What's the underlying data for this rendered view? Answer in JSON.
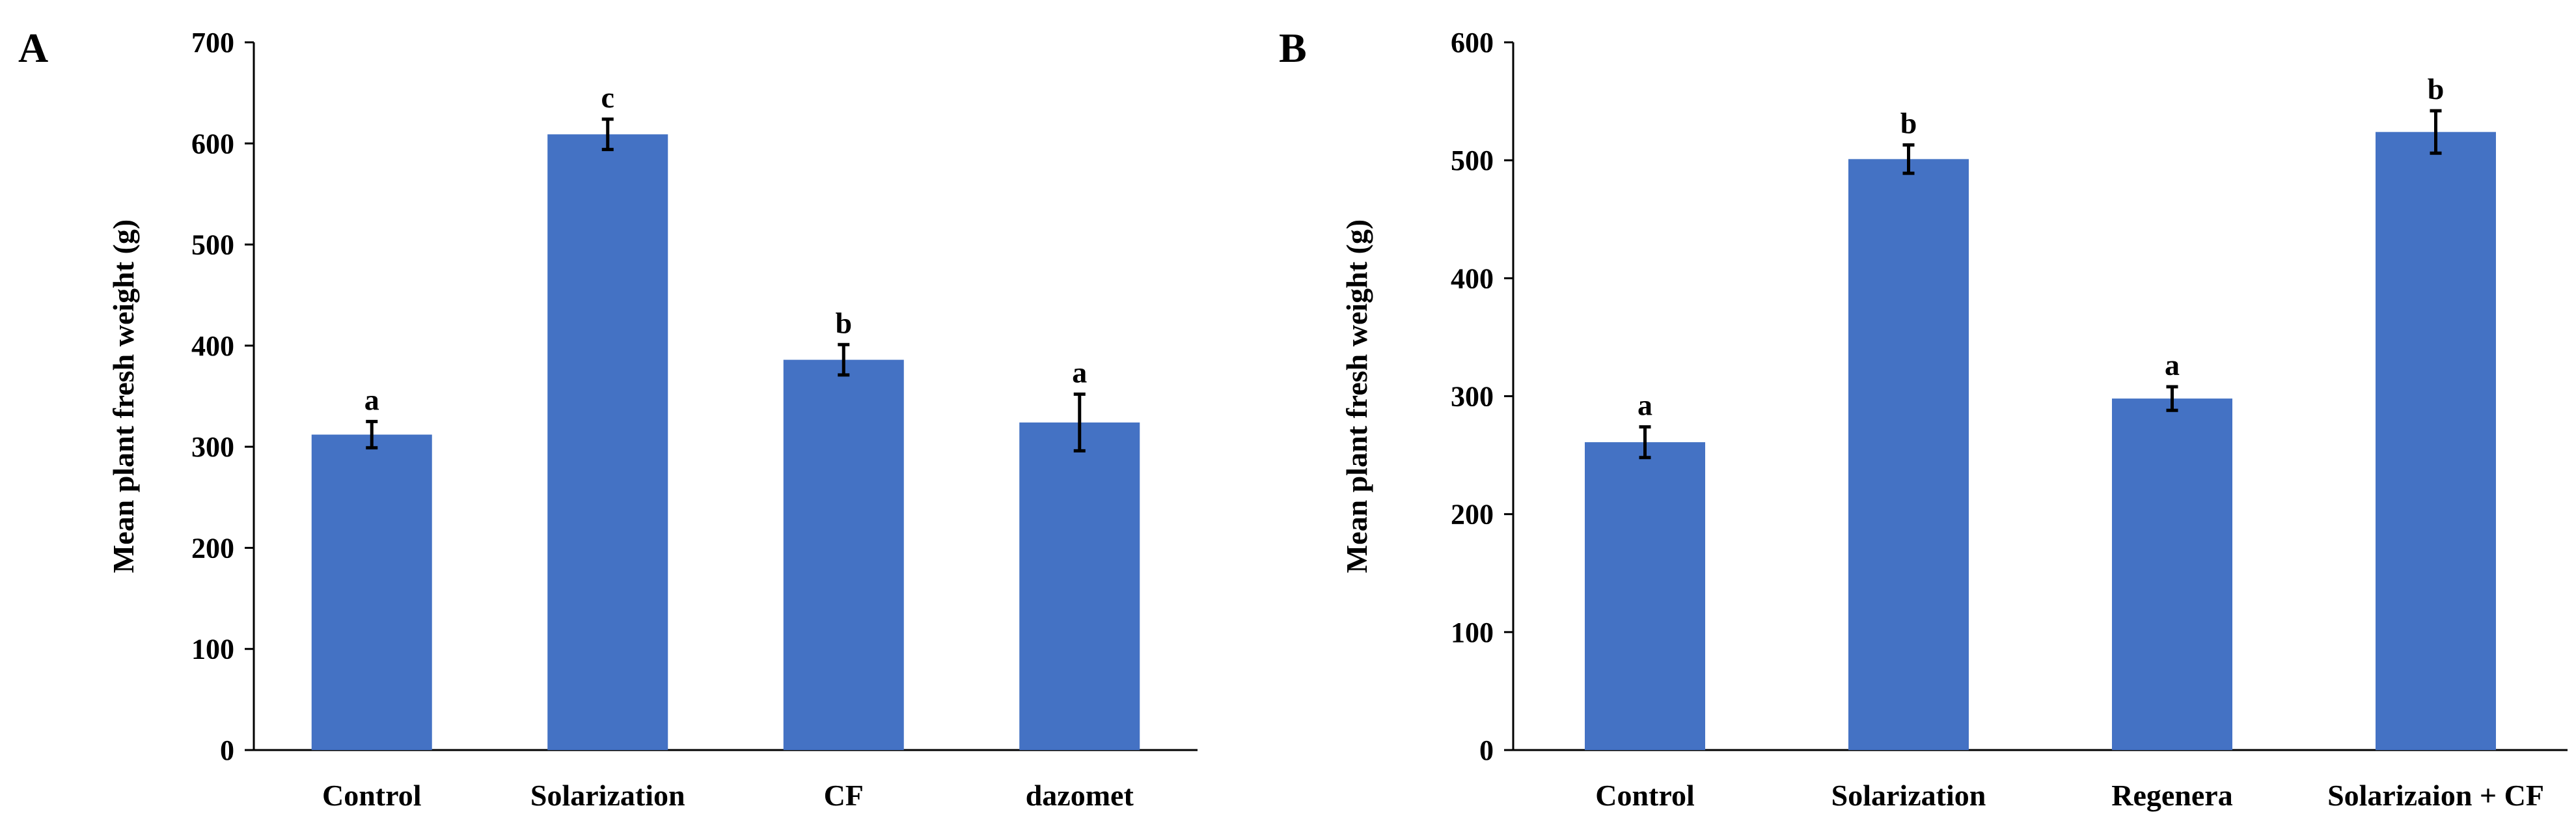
{
  "chart_data": [
    {
      "type": "bar",
      "panel_label": "A",
      "title": "",
      "xlabel": "",
      "ylabel": "Mean plant fresh weight (g)",
      "ylim": [
        0,
        700
      ],
      "yticks": [
        0,
        100,
        200,
        300,
        400,
        500,
        600,
        700
      ],
      "categories": [
        "Control",
        "Solarization",
        "CF",
        "dazomet"
      ],
      "values": [
        312,
        609,
        386,
        324
      ],
      "errors": [
        13,
        15,
        15,
        28
      ],
      "annotations": [
        "a",
        "c",
        "b",
        "a"
      ],
      "bar_color": "#4472C4",
      "grid": false,
      "legend": "none"
    },
    {
      "type": "bar",
      "panel_label": "B",
      "title": "",
      "xlabel": "",
      "ylabel": "Mean plant fresh weight (g)",
      "ylim": [
        0,
        600
      ],
      "yticks": [
        0,
        100,
        200,
        300,
        400,
        500,
        600
      ],
      "categories": [
        "Control",
        "Solarization",
        "Regenera",
        "Solarizaion + CF"
      ],
      "values": [
        261,
        501,
        298,
        524
      ],
      "errors": [
        13,
        12,
        10,
        18
      ],
      "annotations": [
        "a",
        "b",
        "a",
        "b"
      ],
      "bar_color": "#4472C4",
      "grid": false,
      "legend": "none"
    }
  ]
}
